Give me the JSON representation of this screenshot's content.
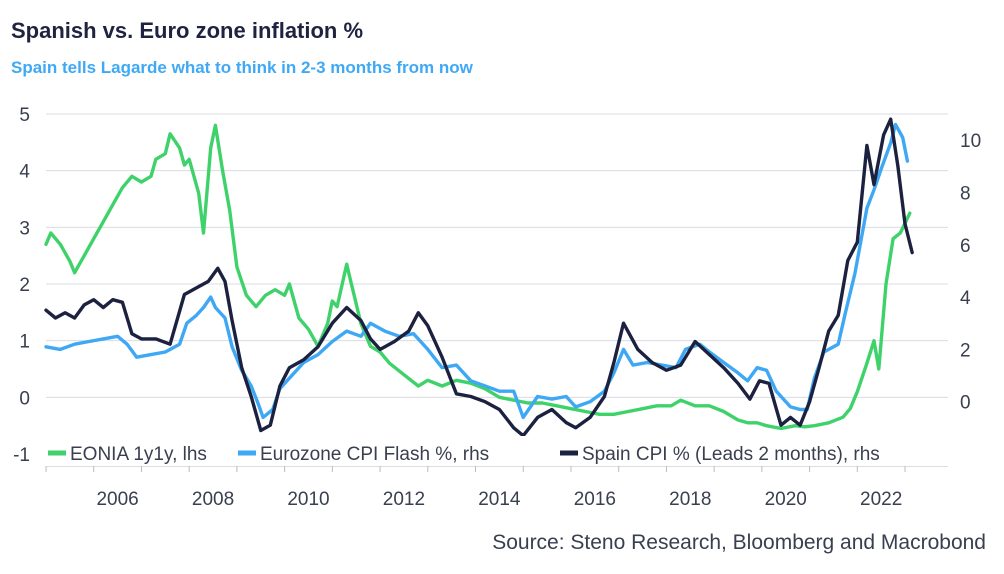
{
  "chart_data": {
    "type": "line",
    "title": "Spanish vs. Euro zone inflation %",
    "subtitle": "Spain tells Lagarde what to think in 2-3 months from now",
    "source": "Source: Steno Research, Bloomberg and Macrobond",
    "x_range": [
      2005.0,
      2023.9
    ],
    "x_ticks": [
      "2006",
      "2008",
      "2010",
      "2012",
      "2014",
      "2016",
      "2018",
      "2020",
      "2022"
    ],
    "y_left": {
      "range": [
        -1.0,
        5.0
      ],
      "ticks": [
        "-1",
        "0",
        "1",
        "2",
        "3",
        "4",
        "5"
      ]
    },
    "y_right": {
      "range": [
        -2.0,
        11.0
      ],
      "ticks": [
        "0",
        "2",
        "4",
        "6",
        "8",
        "10"
      ]
    },
    "grid": "horizontal",
    "legend_position": "bottom-inside",
    "colors": {
      "eonia": "#3fd26b",
      "eurozone": "#3ea8f4",
      "spain": "#1c2140",
      "grid": "#d9dce3"
    },
    "series": [
      {
        "name": "EONIA 1y1y, lhs",
        "axis": "left",
        "points": [
          [
            2005.0,
            2.7
          ],
          [
            2005.1,
            2.9
          ],
          [
            2005.3,
            2.7
          ],
          [
            2005.5,
            2.4
          ],
          [
            2005.6,
            2.2
          ],
          [
            2005.8,
            2.5
          ],
          [
            2006.0,
            2.8
          ],
          [
            2006.2,
            3.1
          ],
          [
            2006.4,
            3.4
          ],
          [
            2006.6,
            3.7
          ],
          [
            2006.8,
            3.9
          ],
          [
            2007.0,
            3.8
          ],
          [
            2007.2,
            3.9
          ],
          [
            2007.3,
            4.2
          ],
          [
            2007.5,
            4.3
          ],
          [
            2007.6,
            4.65
          ],
          [
            2007.8,
            4.4
          ],
          [
            2007.9,
            4.1
          ],
          [
            2008.0,
            4.2
          ],
          [
            2008.2,
            3.6
          ],
          [
            2008.3,
            2.9
          ],
          [
            2008.45,
            4.4
          ],
          [
            2008.55,
            4.8
          ],
          [
            2008.7,
            4.0
          ],
          [
            2008.85,
            3.3
          ],
          [
            2009.0,
            2.3
          ],
          [
            2009.2,
            1.8
          ],
          [
            2009.4,
            1.6
          ],
          [
            2009.6,
            1.8
          ],
          [
            2009.8,
            1.9
          ],
          [
            2010.0,
            1.8
          ],
          [
            2010.1,
            2.0
          ],
          [
            2010.3,
            1.4
          ],
          [
            2010.5,
            1.2
          ],
          [
            2010.7,
            0.9
          ],
          [
            2010.9,
            1.3
          ],
          [
            2011.0,
            1.7
          ],
          [
            2011.1,
            1.6
          ],
          [
            2011.3,
            2.35
          ],
          [
            2011.4,
            2.0
          ],
          [
            2011.6,
            1.3
          ],
          [
            2011.8,
            0.9
          ],
          [
            2012.0,
            0.8
          ],
          [
            2012.2,
            0.6
          ],
          [
            2012.5,
            0.4
          ],
          [
            2012.8,
            0.2
          ],
          [
            2013.0,
            0.3
          ],
          [
            2013.3,
            0.2
          ],
          [
            2013.6,
            0.3
          ],
          [
            2013.9,
            0.25
          ],
          [
            2014.2,
            0.15
          ],
          [
            2014.5,
            0.0
          ],
          [
            2014.8,
            -0.05
          ],
          [
            2015.1,
            -0.1
          ],
          [
            2015.4,
            -0.1
          ],
          [
            2015.7,
            -0.15
          ],
          [
            2016.0,
            -0.2
          ],
          [
            2016.3,
            -0.25
          ],
          [
            2016.6,
            -0.3
          ],
          [
            2016.9,
            -0.3
          ],
          [
            2017.2,
            -0.25
          ],
          [
            2017.5,
            -0.2
          ],
          [
            2017.8,
            -0.15
          ],
          [
            2018.1,
            -0.15
          ],
          [
            2018.3,
            -0.05
          ],
          [
            2018.6,
            -0.15
          ],
          [
            2018.9,
            -0.15
          ],
          [
            2019.2,
            -0.25
          ],
          [
            2019.5,
            -0.4
          ],
          [
            2019.7,
            -0.45
          ],
          [
            2019.9,
            -0.45
          ],
          [
            2020.1,
            -0.5
          ],
          [
            2020.4,
            -0.55
          ],
          [
            2020.7,
            -0.5
          ],
          [
            2020.9,
            -0.52
          ],
          [
            2021.1,
            -0.5
          ],
          [
            2021.4,
            -0.45
          ],
          [
            2021.7,
            -0.35
          ],
          [
            2021.85,
            -0.2
          ],
          [
            2022.0,
            0.1
          ],
          [
            2022.2,
            0.6
          ],
          [
            2022.35,
            1.0
          ],
          [
            2022.45,
            0.5
          ],
          [
            2022.6,
            2.0
          ],
          [
            2022.75,
            2.8
          ],
          [
            2022.9,
            2.9
          ],
          [
            2023.1,
            3.25
          ]
        ]
      },
      {
        "name": "Eurozone CPI Flash %, rhs",
        "axis": "right",
        "points": [
          [
            2005.0,
            2.1
          ],
          [
            2005.3,
            2.0
          ],
          [
            2005.6,
            2.2
          ],
          [
            2005.9,
            2.3
          ],
          [
            2006.2,
            2.4
          ],
          [
            2006.5,
            2.5
          ],
          [
            2006.7,
            2.2
          ],
          [
            2006.9,
            1.7
          ],
          [
            2007.2,
            1.8
          ],
          [
            2007.5,
            1.9
          ],
          [
            2007.8,
            2.2
          ],
          [
            2007.95,
            3.0
          ],
          [
            2008.15,
            3.3
          ],
          [
            2008.3,
            3.6
          ],
          [
            2008.45,
            4.0
          ],
          [
            2008.55,
            3.6
          ],
          [
            2008.75,
            3.2
          ],
          [
            2008.9,
            2.1
          ],
          [
            2009.1,
            1.2
          ],
          [
            2009.3,
            0.6
          ],
          [
            2009.45,
            -0.1
          ],
          [
            2009.55,
            -0.6
          ],
          [
            2009.75,
            -0.3
          ],
          [
            2009.9,
            0.5
          ],
          [
            2010.1,
            0.9
          ],
          [
            2010.4,
            1.5
          ],
          [
            2010.7,
            1.8
          ],
          [
            2011.0,
            2.3
          ],
          [
            2011.3,
            2.7
          ],
          [
            2011.6,
            2.5
          ],
          [
            2011.8,
            3.0
          ],
          [
            2012.1,
            2.7
          ],
          [
            2012.4,
            2.5
          ],
          [
            2012.7,
            2.6
          ],
          [
            2013.0,
            2.0
          ],
          [
            2013.3,
            1.3
          ],
          [
            2013.6,
            1.4
          ],
          [
            2013.9,
            0.8
          ],
          [
            2014.2,
            0.6
          ],
          [
            2014.5,
            0.4
          ],
          [
            2014.8,
            0.4
          ],
          [
            2015.0,
            -0.6
          ],
          [
            2015.3,
            0.2
          ],
          [
            2015.6,
            0.1
          ],
          [
            2015.9,
            0.2
          ],
          [
            2016.1,
            -0.2
          ],
          [
            2016.4,
            0.0
          ],
          [
            2016.7,
            0.4
          ],
          [
            2016.9,
            1.1
          ],
          [
            2017.1,
            2.0
          ],
          [
            2017.3,
            1.4
          ],
          [
            2017.6,
            1.5
          ],
          [
            2017.9,
            1.4
          ],
          [
            2018.2,
            1.3
          ],
          [
            2018.4,
            2.0
          ],
          [
            2018.7,
            2.2
          ],
          [
            2018.9,
            1.9
          ],
          [
            2019.2,
            1.5
          ],
          [
            2019.5,
            1.1
          ],
          [
            2019.7,
            0.8
          ],
          [
            2019.9,
            1.3
          ],
          [
            2020.1,
            1.2
          ],
          [
            2020.3,
            0.4
          ],
          [
            2020.6,
            -0.2
          ],
          [
            2020.8,
            -0.3
          ],
          [
            2020.95,
            -0.3
          ],
          [
            2021.1,
            0.9
          ],
          [
            2021.3,
            1.9
          ],
          [
            2021.6,
            2.2
          ],
          [
            2021.75,
            3.4
          ],
          [
            2021.95,
            4.9
          ],
          [
            2022.2,
            7.4
          ],
          [
            2022.35,
            8.1
          ],
          [
            2022.5,
            8.9
          ],
          [
            2022.7,
            9.9
          ],
          [
            2022.8,
            10.6
          ],
          [
            2022.95,
            10.1
          ],
          [
            2023.05,
            9.2
          ]
        ]
      },
      {
        "name": "Spain CPI % (Leads 2 months), rhs",
        "axis": "right",
        "points": [
          [
            2005.0,
            3.5
          ],
          [
            2005.2,
            3.2
          ],
          [
            2005.4,
            3.4
          ],
          [
            2005.6,
            3.2
          ],
          [
            2005.8,
            3.7
          ],
          [
            2006.0,
            3.9
          ],
          [
            2006.2,
            3.6
          ],
          [
            2006.4,
            3.9
          ],
          [
            2006.6,
            3.8
          ],
          [
            2006.8,
            2.6
          ],
          [
            2007.0,
            2.4
          ],
          [
            2007.3,
            2.4
          ],
          [
            2007.6,
            2.2
          ],
          [
            2007.9,
            4.1
          ],
          [
            2008.2,
            4.4
          ],
          [
            2008.4,
            4.6
          ],
          [
            2008.6,
            5.1
          ],
          [
            2008.75,
            4.6
          ],
          [
            2008.9,
            3.1
          ],
          [
            2009.1,
            1.3
          ],
          [
            2009.3,
            0.2
          ],
          [
            2009.5,
            -1.1
          ],
          [
            2009.7,
            -0.9
          ],
          [
            2009.9,
            0.6
          ],
          [
            2010.1,
            1.3
          ],
          [
            2010.4,
            1.6
          ],
          [
            2010.7,
            2.1
          ],
          [
            2011.0,
            3.0
          ],
          [
            2011.3,
            3.6
          ],
          [
            2011.6,
            3.1
          ],
          [
            2011.8,
            2.4
          ],
          [
            2012.0,
            2.0
          ],
          [
            2012.3,
            2.3
          ],
          [
            2012.6,
            2.7
          ],
          [
            2012.8,
            3.4
          ],
          [
            2013.0,
            2.9
          ],
          [
            2013.3,
            1.7
          ],
          [
            2013.6,
            0.3
          ],
          [
            2013.9,
            0.2
          ],
          [
            2014.2,
            0.0
          ],
          [
            2014.5,
            -0.3
          ],
          [
            2014.8,
            -1.0
          ],
          [
            2015.0,
            -1.3
          ],
          [
            2015.3,
            -0.6
          ],
          [
            2015.6,
            -0.3
          ],
          [
            2015.9,
            -0.8
          ],
          [
            2016.1,
            -1.0
          ],
          [
            2016.4,
            -0.6
          ],
          [
            2016.7,
            0.2
          ],
          [
            2016.9,
            1.5
          ],
          [
            2017.1,
            3.0
          ],
          [
            2017.4,
            2.0
          ],
          [
            2017.7,
            1.5
          ],
          [
            2018.0,
            1.2
          ],
          [
            2018.3,
            1.4
          ],
          [
            2018.6,
            2.3
          ],
          [
            2018.9,
            1.8
          ],
          [
            2019.2,
            1.3
          ],
          [
            2019.5,
            0.7
          ],
          [
            2019.75,
            0.1
          ],
          [
            2019.95,
            0.8
          ],
          [
            2020.15,
            0.7
          ],
          [
            2020.4,
            -0.9
          ],
          [
            2020.6,
            -0.6
          ],
          [
            2020.8,
            -0.9
          ],
          [
            2021.0,
            0.0
          ],
          [
            2021.2,
            1.3
          ],
          [
            2021.4,
            2.7
          ],
          [
            2021.6,
            3.3
          ],
          [
            2021.8,
            5.4
          ],
          [
            2022.0,
            6.1
          ],
          [
            2022.2,
            9.8
          ],
          [
            2022.35,
            8.3
          ],
          [
            2022.55,
            10.2
          ],
          [
            2022.7,
            10.8
          ],
          [
            2022.85,
            9.0
          ],
          [
            2023.0,
            6.8
          ],
          [
            2023.15,
            5.7
          ]
        ]
      }
    ]
  }
}
